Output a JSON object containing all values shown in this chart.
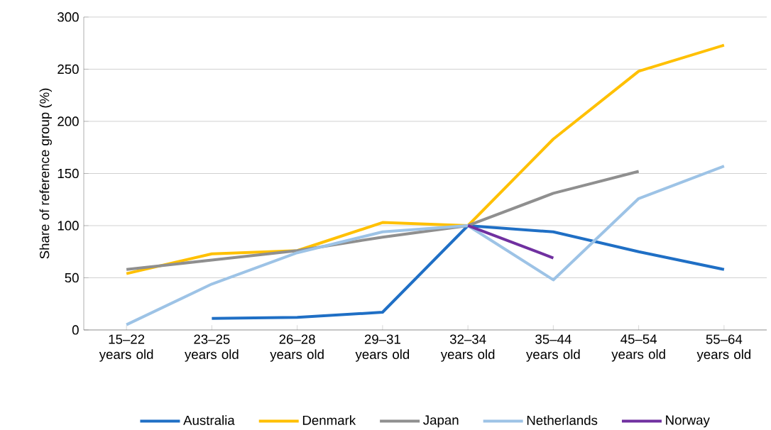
{
  "chart_data": {
    "type": "line",
    "ylabel": "Share of reference group (%)",
    "categories": [
      "15–22 years old",
      "23–25 years old",
      "26–28 years old",
      "29–31 years old",
      "32–34 years old",
      "35–44 years old",
      "45–54 years old",
      "55–64 years old"
    ],
    "series": [
      {
        "name": "Australia",
        "color": "#1f6fc5",
        "values": [
          null,
          11,
          12,
          17,
          100,
          94,
          75,
          58
        ]
      },
      {
        "name": "Denmark",
        "color": "#ffc000",
        "values": [
          54,
          73,
          76,
          103,
          100,
          183,
          248,
          273
        ]
      },
      {
        "name": "Japan",
        "color": "#8f8f8f",
        "values": [
          58,
          67,
          76,
          89,
          100,
          131,
          152,
          null
        ]
      },
      {
        "name": "Netherlands",
        "color": "#9dc3e6",
        "values": [
          5,
          44,
          74,
          94,
          100,
          48,
          126,
          157
        ]
      },
      {
        "name": "Norway",
        "color": "#7030a0",
        "values": [
          null,
          null,
          null,
          null,
          100,
          69,
          null,
          null
        ]
      }
    ],
    "ylim": [
      0,
      300
    ],
    "yticks": [
      0,
      50,
      100,
      150,
      200,
      250,
      300
    ],
    "grid": "y",
    "legend": "bottom",
    "marker": "none",
    "line_style": "solid"
  }
}
